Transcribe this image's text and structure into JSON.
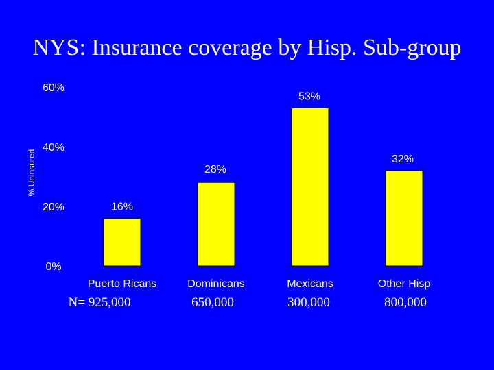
{
  "slide": {
    "title": "NYS: Insurance coverage by Hisp. Sub-group",
    "background_color": "#0000FF",
    "n_labels": [
      "N= 925,000",
      "650,000",
      "300,000",
      "800,000"
    ]
  },
  "chart_data": {
    "type": "bar",
    "title": "",
    "xlabel": "",
    "ylabel": "% Uninsured",
    "categories": [
      "Puerto Ricans",
      "Dominicans",
      "Mexicans",
      "Other Hisp"
    ],
    "values": [
      16,
      28,
      53,
      32
    ],
    "value_labels": [
      "16%",
      "28%",
      "53%",
      "32%"
    ],
    "ylim": [
      0,
      60
    ],
    "yticks": [
      0,
      20,
      40,
      60
    ],
    "ytick_labels": [
      "0%",
      "20%",
      "40%",
      "60%"
    ],
    "grid": false,
    "legend": "none",
    "bar_color": "#FFFF00",
    "text_color": "#FFFFFF"
  }
}
